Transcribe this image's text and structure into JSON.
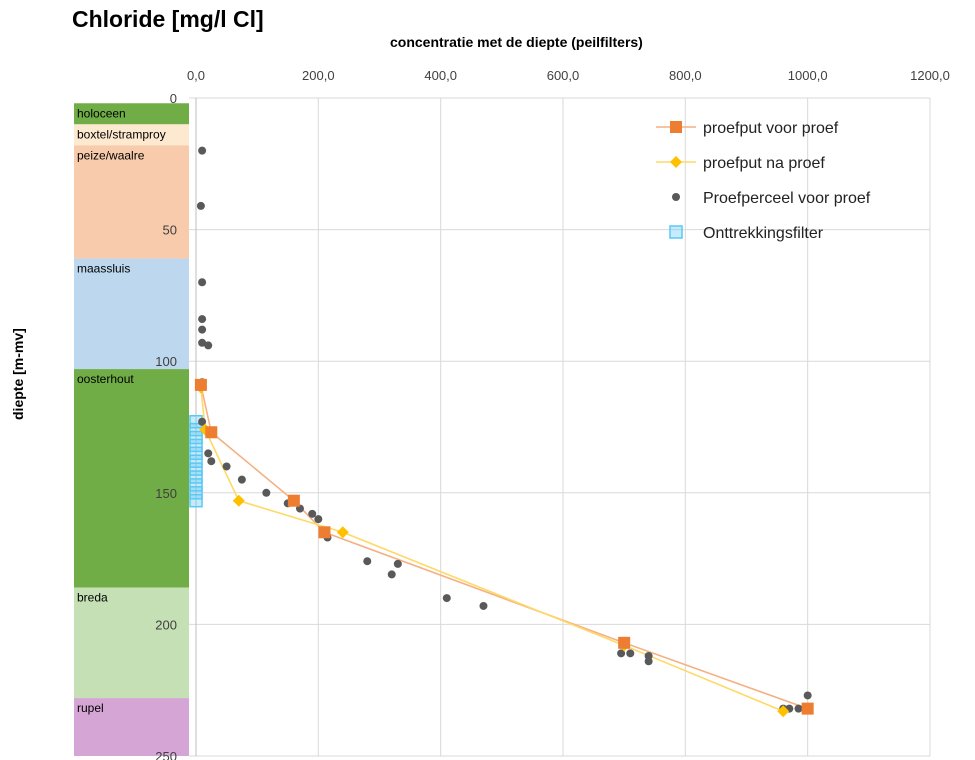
{
  "chart_data": {
    "type": "scatter",
    "title": "Chloride [mg/l Cl]",
    "subtitle": "concentratie met de diepte (peilfilters)",
    "xlabel": "concentratie met de diepte (peilfilters)",
    "ylabel": "diepte [m-mv]",
    "xlim": [
      0,
      1200
    ],
    "ylim": [
      0,
      250
    ],
    "y_inverted": true,
    "x_axis_position": "top",
    "x_ticks": [
      "0,0",
      "200,0",
      "400,0",
      "600,0",
      "800,0",
      "1000,0",
      "1200,0"
    ],
    "y_ticks": [
      "0",
      "50",
      "100",
      "150",
      "200",
      "250"
    ],
    "grid": true,
    "legend_position": "top-right",
    "strata": [
      {
        "name": "holoceen",
        "top": 2,
        "bottom": 10,
        "color": "#70ad47"
      },
      {
        "name": "boxtel/stramproy",
        "top": 10,
        "bottom": 18,
        "color": "#fde9d0"
      },
      {
        "name": "peize/waalre",
        "top": 18,
        "bottom": 61,
        "color": "#f8cbad"
      },
      {
        "name": "maassluis",
        "top": 61,
        "bottom": 103,
        "color": "#bdd7ee"
      },
      {
        "name": "oosterhout",
        "top": 103,
        "bottom": 186,
        "color": "#70ad47"
      },
      {
        "name": "breda",
        "top": 186,
        "bottom": 228,
        "color": "#c5e0b4"
      },
      {
        "name": "rupel",
        "top": 228,
        "bottom": 250,
        "color": "#d5a6d5"
      }
    ],
    "series": [
      {
        "name": "proefput voor proef",
        "kind": "line-square",
        "color": "#ed7d31",
        "line_color": "#f4b183",
        "points": [
          [
            8,
            109
          ],
          [
            25,
            127
          ],
          [
            160,
            153
          ],
          [
            210,
            165
          ],
          [
            700,
            207
          ],
          [
            1000,
            232
          ]
        ]
      },
      {
        "name": "proefput na proef",
        "kind": "line-diamond",
        "color": "#ffc000",
        "line_color": "#ffd966",
        "points": [
          [
            8,
            110
          ],
          [
            15,
            126
          ],
          [
            70,
            153
          ],
          [
            240,
            165
          ],
          [
            700,
            208
          ],
          [
            960,
            233
          ]
        ]
      },
      {
        "name": "Proefperceel voor proef",
        "kind": "dot",
        "color": "#595959",
        "points": [
          [
            10,
            20
          ],
          [
            8,
            41
          ],
          [
            10,
            70
          ],
          [
            10,
            84
          ],
          [
            10,
            88
          ],
          [
            10,
            93
          ],
          [
            20,
            94
          ],
          [
            10,
            108
          ],
          [
            10,
            109
          ],
          [
            10,
            123
          ],
          [
            20,
            135
          ],
          [
            25,
            138
          ],
          [
            50,
            140
          ],
          [
            75,
            145
          ],
          [
            115,
            150
          ],
          [
            150,
            154
          ],
          [
            170,
            156
          ],
          [
            190,
            158
          ],
          [
            200,
            160
          ],
          [
            215,
            167
          ],
          [
            280,
            176
          ],
          [
            330,
            177
          ],
          [
            320,
            181
          ],
          [
            410,
            190
          ],
          [
            470,
            193
          ],
          [
            695,
            211
          ],
          [
            710,
            211
          ],
          [
            740,
            212
          ],
          [
            740,
            214
          ],
          [
            960,
            232
          ],
          [
            970,
            232
          ],
          [
            985,
            232
          ],
          [
            1000,
            227
          ]
        ]
      },
      {
        "name": "Onttrekkingsfilter",
        "kind": "square-outline",
        "color": "#5bc8f5",
        "points": [
          [
            0,
            123
          ],
          [
            0,
            126
          ],
          [
            0,
            129
          ],
          [
            0,
            132
          ],
          [
            0,
            135
          ],
          [
            0,
            138
          ],
          [
            0,
            141
          ],
          [
            0,
            144
          ],
          [
            0,
            147
          ],
          [
            0,
            150
          ],
          [
            0,
            153
          ]
        ]
      }
    ]
  }
}
